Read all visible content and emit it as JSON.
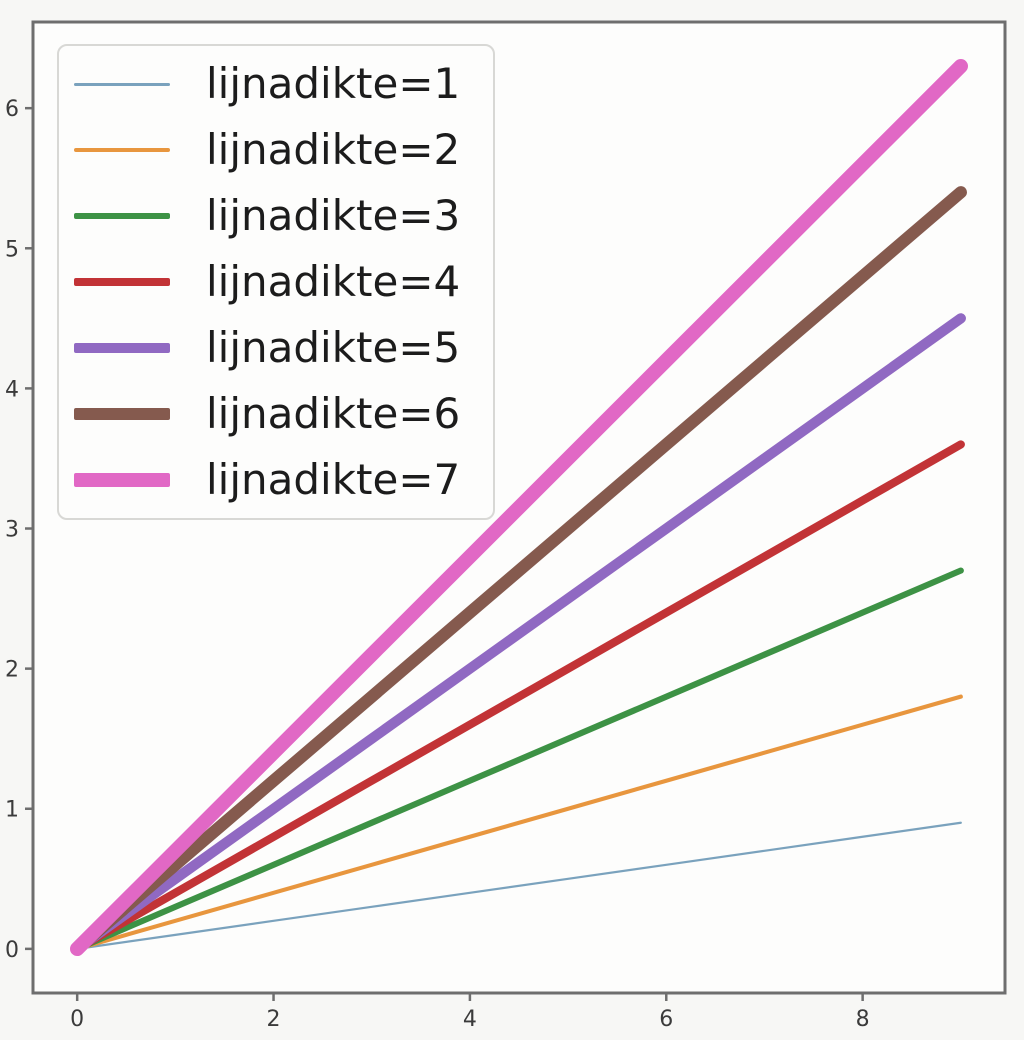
{
  "figure": {
    "background": "#f7f7f5",
    "plot_background": "#fdfdfc",
    "frame_color": "#6e6e6e",
    "tick_color": "#6e6e6e",
    "tick_label_color": "#3b3b3b",
    "legend_border_color": "#d8d8d5",
    "legend_text_color": "#1c1c1c"
  },
  "chart_data": {
    "type": "line",
    "title": "",
    "xlabel": "",
    "ylabel": "",
    "grid": false,
    "legend_position": "upper-left",
    "x": [
      0,
      1,
      2,
      3,
      4,
      5,
      6,
      7,
      8,
      9
    ],
    "series": [
      {
        "name": "lijnadikte=1",
        "linewidth": 1,
        "color": "#7aa2bd",
        "values": [
          0,
          0.1,
          0.2,
          0.3,
          0.4,
          0.5,
          0.6,
          0.7,
          0.8,
          0.9
        ]
      },
      {
        "name": "lijnadikte=2",
        "linewidth": 2,
        "color": "#e8963e",
        "values": [
          0,
          0.2,
          0.4,
          0.6,
          0.8,
          1.0,
          1.2,
          1.4,
          1.6,
          1.8
        ]
      },
      {
        "name": "lijnadikte=3",
        "linewidth": 3,
        "color": "#3d9245",
        "values": [
          0,
          0.3,
          0.6,
          0.9,
          1.2,
          1.5,
          1.8,
          2.1,
          2.4,
          2.7
        ]
      },
      {
        "name": "lijnadikte=4",
        "linewidth": 4,
        "color": "#c23336",
        "values": [
          0,
          0.4,
          0.8,
          1.2,
          1.6,
          2.0,
          2.4,
          2.8,
          3.2,
          3.6
        ]
      },
      {
        "name": "lijnadikte=5",
        "linewidth": 5,
        "color": "#9069c2",
        "values": [
          0,
          0.5,
          1.0,
          1.5,
          2.0,
          2.5,
          3.0,
          3.5,
          4.0,
          4.5
        ]
      },
      {
        "name": "lijnadikte=6",
        "linewidth": 6,
        "color": "#855a4e",
        "values": [
          0,
          0.6,
          1.2,
          1.8,
          2.4,
          3.0,
          3.6,
          4.2,
          4.8,
          5.4
        ]
      },
      {
        "name": "lijnadikte=7",
        "linewidth": 7,
        "color": "#e168c5",
        "values": [
          0,
          0.7,
          1.4,
          2.1,
          2.8,
          3.5,
          4.2,
          4.9,
          5.6,
          6.3
        ]
      }
    ],
    "xticks": [
      0,
      2,
      4,
      6,
      8
    ],
    "yticks": [
      0,
      1,
      2,
      3,
      4,
      5,
      6
    ],
    "xlim": [
      -0.45,
      9.45
    ],
    "ylim": [
      -0.315,
      6.615
    ]
  }
}
